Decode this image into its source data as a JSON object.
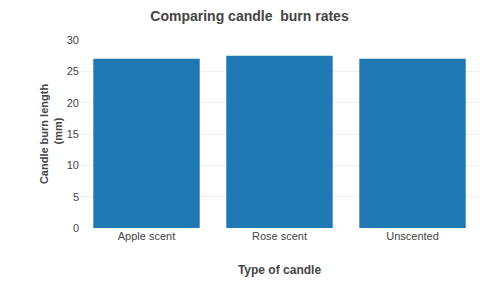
{
  "chart_data": {
    "type": "bar",
    "title": "Comparing candle  burn rates",
    "categories": [
      "Apple scent",
      "Rose scent",
      "Unscented"
    ],
    "values": [
      27,
      27.5,
      27
    ],
    "xlabel": "Type of candle",
    "ylabel": [
      "Candle burn length",
      "  (mm)"
    ],
    "ylim": [
      0,
      30
    ],
    "yticks": [
      0,
      5,
      10,
      15,
      20,
      25,
      30
    ],
    "grid": true
  }
}
